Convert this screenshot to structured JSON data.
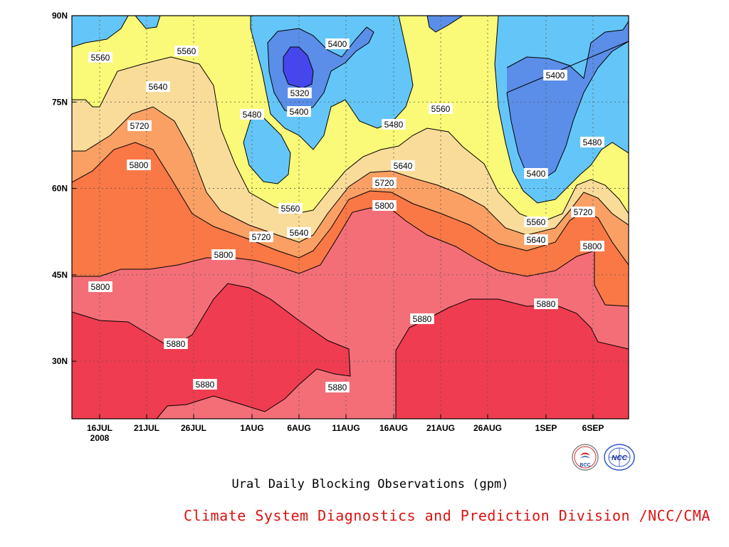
{
  "caption": "Ural Daily Blocking Observations (gpm)",
  "credit": "Climate System Diagnostics and Prediction Division /NCC/CMA",
  "logos": {
    "left": "BCC",
    "right": "NCC"
  },
  "chart_data": {
    "type": "filled-contour",
    "title": "",
    "xlabel": "",
    "ylabel": "",
    "year_label": "2008",
    "x_ticks": [
      "16JUL",
      "21JUL",
      "26JUL",
      "1AUG",
      "6AUG",
      "11AUG",
      "16AUG",
      "21AUG",
      "26AUG",
      "1SEP",
      "6SEP"
    ],
    "y_ticks": [
      "90N",
      "75N",
      "60N",
      "45N",
      "30N"
    ],
    "y_range": [
      20,
      90
    ],
    "contour_levels": [
      5320,
      5400,
      5480,
      5560,
      5640,
      5720,
      5800,
      5880
    ],
    "level_colors": {
      "<5320": "#4646ee",
      "5320-5400": "#5a8ee8",
      "5400-5480": "#64c6f8",
      "5480-5560": "#fafa78",
      "5560-5640": "#fadc9a",
      "5640-5720": "#faa064",
      "5720-5800": "#fa7846",
      "5800-5880": "#f46e78",
      ">5880": "#f03c50"
    },
    "grid": "dotted",
    "contour_labels": [
      "5560",
      "5560",
      "5640",
      "5720",
      "5800",
      "5800",
      "5880",
      "5880",
      "5800",
      "5720",
      "5560",
      "5640",
      "5480",
      "5400",
      "5320",
      "5400",
      "5480",
      "5560",
      "5640",
      "5720",
      "5800",
      "5880",
      "5880",
      "5400",
      "5480",
      "5400",
      "5560",
      "5640",
      "5720",
      "5800",
      "5880"
    ]
  }
}
